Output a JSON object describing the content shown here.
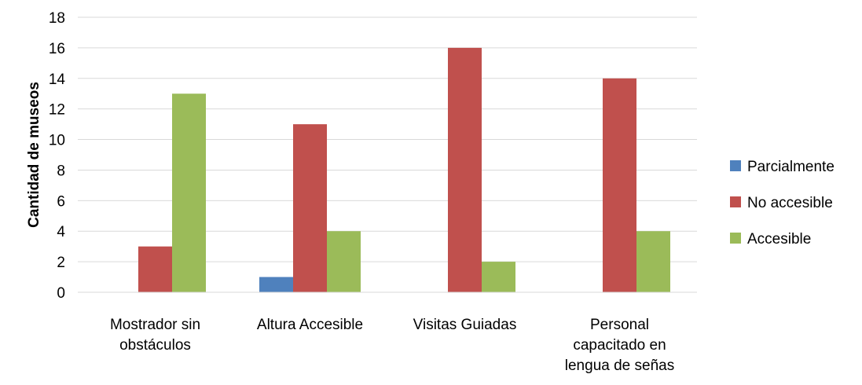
{
  "chart_data": {
    "type": "bar",
    "title": "",
    "xlabel": "",
    "ylabel": "Cantidad de museos",
    "ylim": [
      0,
      18
    ],
    "ytick_step": 2,
    "grid": true,
    "legend_position": "right",
    "categories": [
      [
        "Mostrador sin",
        "obstáculos"
      ],
      [
        "Altura Accesible"
      ],
      [
        "Visitas Guiadas"
      ],
      [
        "Personal",
        "capacitado en",
        "lengua de señas"
      ]
    ],
    "series": [
      {
        "name": "Parcialmente",
        "color": "#4f81bd",
        "values": [
          0,
          1,
          0,
          0
        ]
      },
      {
        "name": "No accesible",
        "color": "#c0504d",
        "values": [
          3,
          11,
          16,
          14
        ]
      },
      {
        "name": "Accesible",
        "color": "#9bbb59",
        "values": [
          13,
          4,
          2,
          4
        ]
      }
    ]
  }
}
